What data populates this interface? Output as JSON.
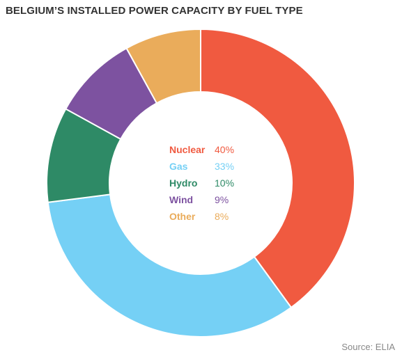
{
  "header": {
    "title": "BELGIUM’S INSTALLED POWER CAPACITY BY FUEL TYPE"
  },
  "chart_data": {
    "type": "pie",
    "title": "BELGIUM’S INSTALLED POWER CAPACITY BY FUEL TYPE",
    "unit": "%",
    "series": [
      {
        "name": "Nuclear",
        "value": 40,
        "label": "40%",
        "color": "#f05a40"
      },
      {
        "name": "Gas",
        "value": 33,
        "label": "33%",
        "color": "#75d0f5"
      },
      {
        "name": "Hydro",
        "value": 10,
        "label": "10%",
        "color": "#2e8a66"
      },
      {
        "name": "Wind",
        "value": 9,
        "label": "9%",
        "color": "#7d52a0"
      },
      {
        "name": "Other",
        "value": 8,
        "label": "8%",
        "color": "#eaac5b"
      }
    ]
  },
  "footer": {
    "source": "Source: ELIA"
  }
}
